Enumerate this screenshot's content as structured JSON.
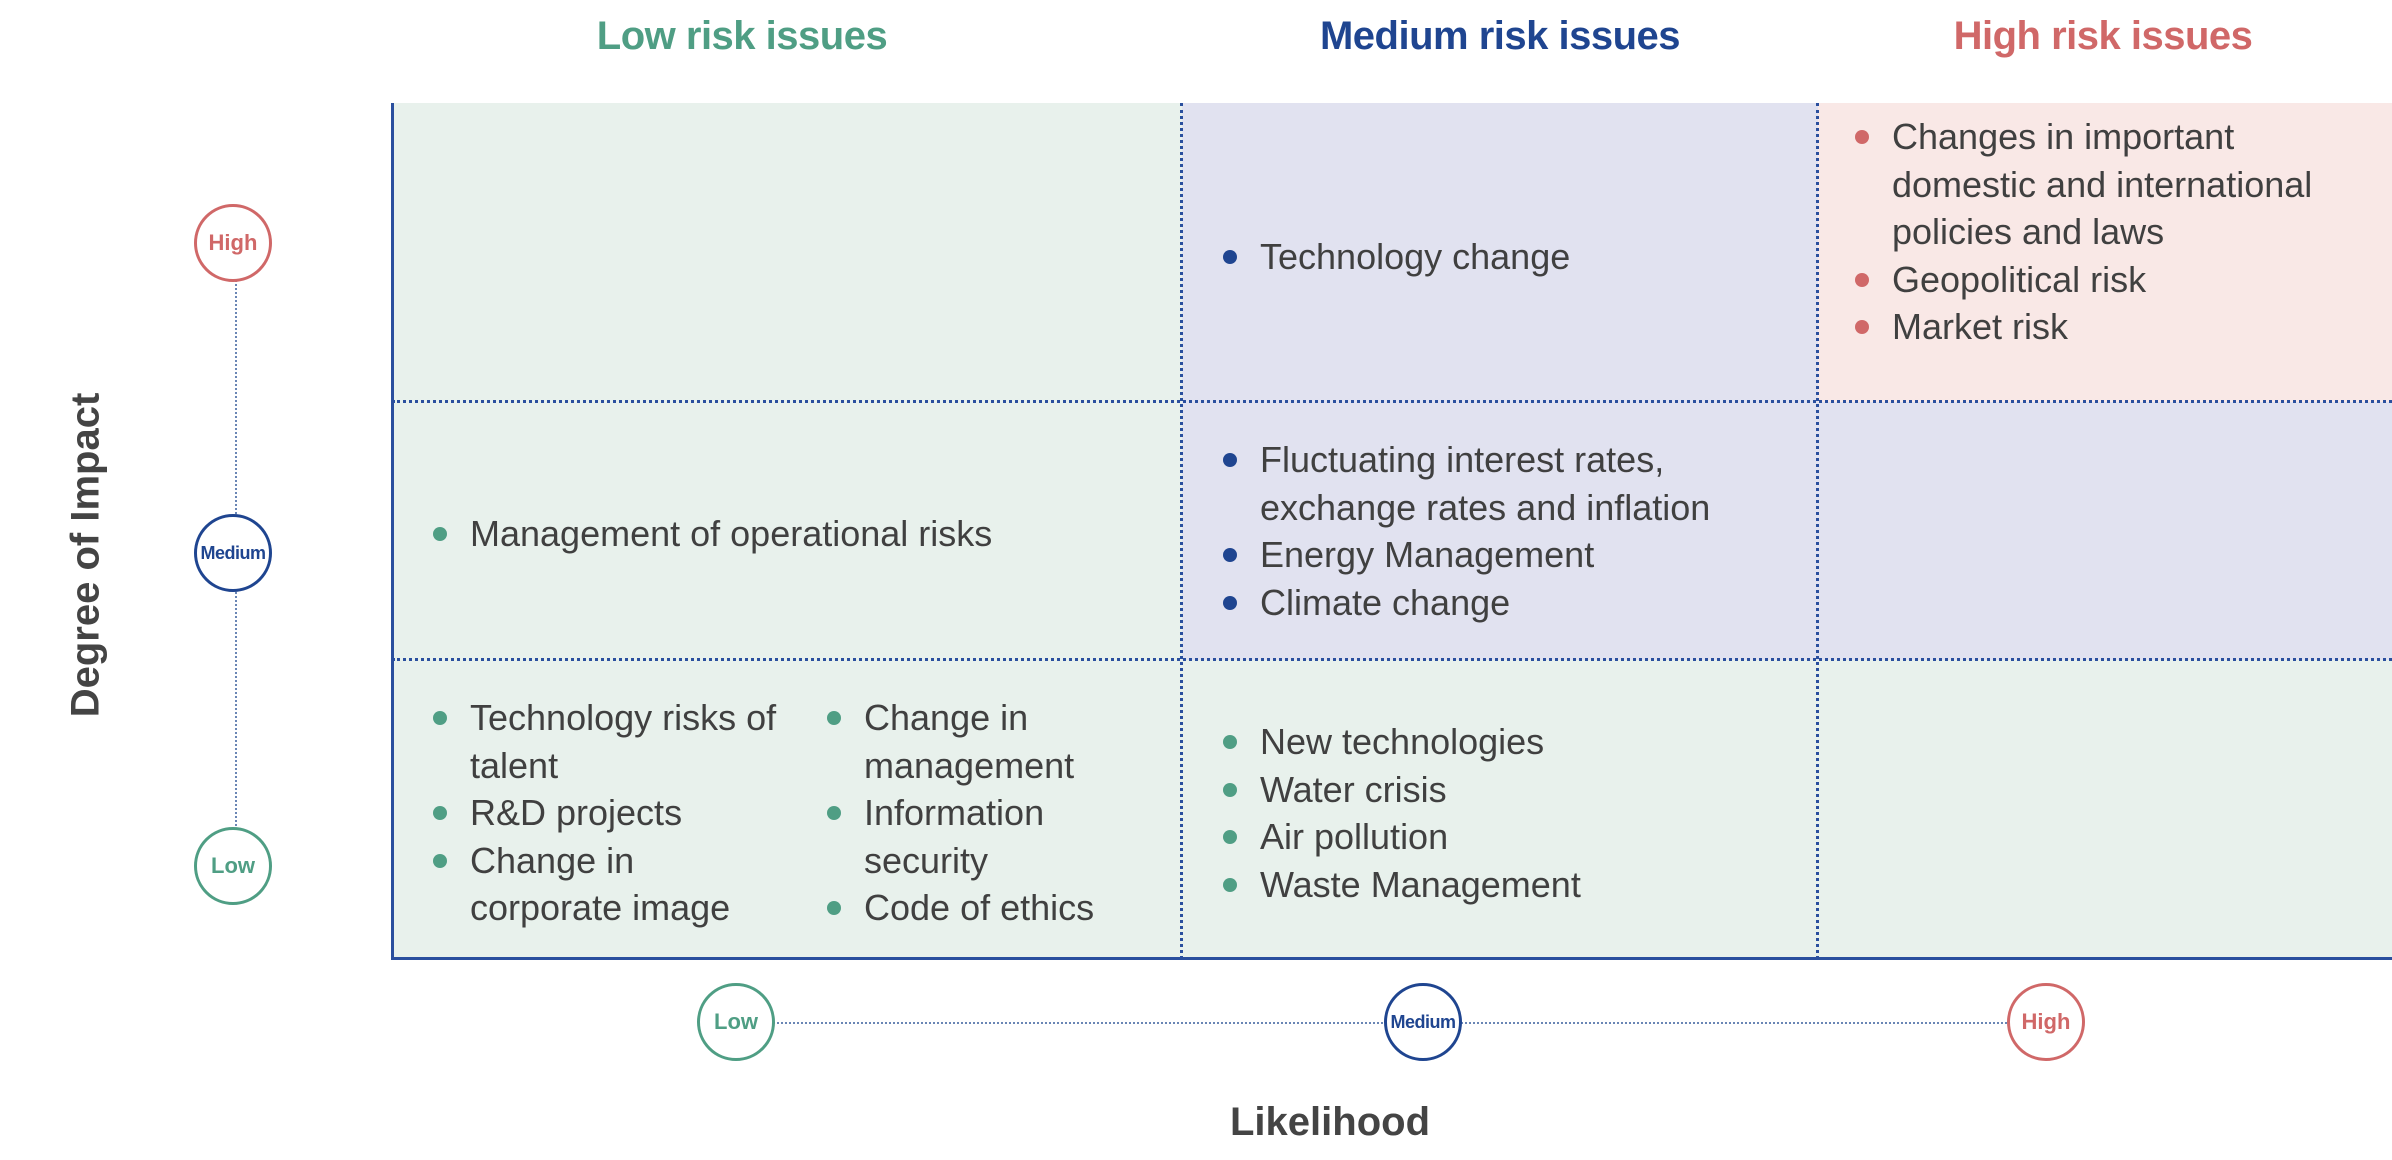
{
  "columns": {
    "low": {
      "label": "Low risk issues",
      "color": "#4f9e84"
    },
    "medium": {
      "label": "Medium risk issues",
      "color": "#1f4590"
    },
    "high": {
      "label": "High risk issues",
      "color": "#d06868"
    }
  },
  "y_axis": {
    "title": "Degree of Impact",
    "levels": [
      "High",
      "Medium",
      "Low"
    ]
  },
  "x_axis": {
    "title": "Likelihood",
    "levels": [
      "Low",
      "Medium",
      "High"
    ]
  },
  "cells": {
    "high_impact_medium_likelihood": [
      "Technology change"
    ],
    "high_impact_high_likelihood": [
      "Changes in important domestic and international policies and laws",
      "Geopolitical risk",
      "Market risk"
    ],
    "medium_impact_low_likelihood": [
      "Management of operational risks"
    ],
    "medium_impact_medium_likelihood": [
      "Fluctuating interest rates, exchange rates and inflation",
      "Energy Management",
      "Climate change"
    ],
    "low_impact_low_likelihood_col1": [
      "Technology risks of talent",
      "R&D projects",
      "Change in corporate image"
    ],
    "low_impact_low_likelihood_col2": [
      "Change in management",
      "Information security",
      "Code of ethics"
    ],
    "low_impact_medium_likelihood": [
      "New technologies",
      "Water crisis",
      "Air pollution",
      "Waste Management"
    ]
  }
}
